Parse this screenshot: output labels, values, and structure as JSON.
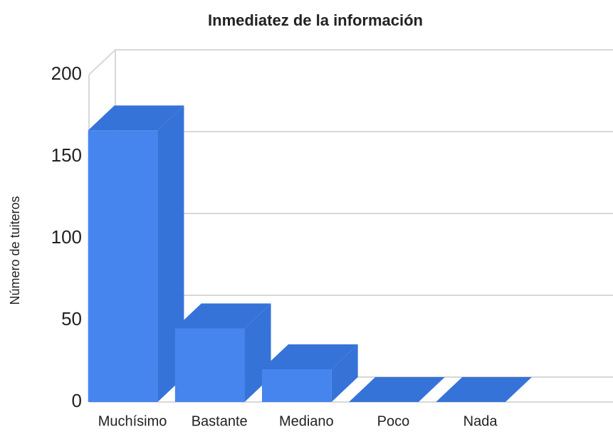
{
  "chart_data": {
    "type": "bar",
    "title": "Inmediatez de la información",
    "y_label": "Número de tuiteros",
    "categories": [
      "Muchísimo",
      "Bastante",
      "Mediano",
      "Poco",
      "Nada"
    ],
    "values": [
      166,
      45,
      20,
      0,
      0
    ],
    "color": "#4684ee",
    "ylim": [
      0,
      200
    ],
    "yticks": [
      0,
      50,
      100,
      150,
      200
    ],
    "grid": true
  }
}
